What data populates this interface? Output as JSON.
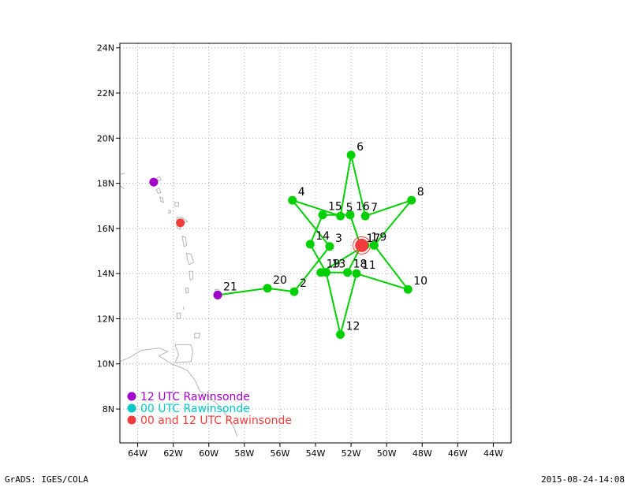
{
  "footer": {
    "left": "GrADS: IGES/COLA",
    "right": "2015-08-24-14:08"
  },
  "chart_data": {
    "type": "map",
    "lon_range": [
      -65,
      -43
    ],
    "lat_range": [
      6.5,
      24.2
    ],
    "x_ticks": [
      -64,
      -62,
      -60,
      -58,
      -56,
      -54,
      -52,
      -50,
      -48,
      -46,
      -44
    ],
    "x_tick_labels": [
      "64W",
      "62W",
      "60W",
      "58W",
      "56W",
      "54W",
      "52W",
      "50W",
      "48W",
      "46W",
      "44W"
    ],
    "y_ticks": [
      8,
      10,
      12,
      14,
      16,
      18,
      20,
      22,
      24
    ],
    "y_tick_labels": [
      "8N",
      "10N",
      "12N",
      "14N",
      "16N",
      "18N",
      "20N",
      "22N",
      "24N"
    ],
    "grid": true,
    "colors": {
      "track": "#00d000",
      "point": "#00d000",
      "rawinsonde_12": "#a000c8",
      "rawinsonde_00": "#00c8c8",
      "rawinsonde_both": "#f03c3c",
      "land": "#b4b4b4",
      "center": "#f03c3c"
    },
    "track_points": [
      {
        "label": "1",
        "lon": -51.2,
        "lat": 15.25
      },
      {
        "label": "2",
        "lon": -55.2,
        "lat": 13.2
      },
      {
        "label": "3",
        "lon": -53.2,
        "lat": 15.2
      },
      {
        "label": "4",
        "lon": -55.3,
        "lat": 17.25
      },
      {
        "label": "5",
        "lon": -52.6,
        "lat": 16.55
      },
      {
        "label": "6",
        "lon": -52.0,
        "lat": 19.25
      },
      {
        "label": "7",
        "lon": -51.2,
        "lat": 16.55
      },
      {
        "label": "8",
        "lon": -48.6,
        "lat": 17.25
      },
      {
        "label": "9",
        "lon": -50.7,
        "lat": 15.25
      },
      {
        "label": "10",
        "lon": -48.8,
        "lat": 13.3
      },
      {
        "label": "11",
        "lon": -51.7,
        "lat": 14.0
      },
      {
        "label": "12",
        "lon": -52.6,
        "lat": 11.3
      },
      {
        "label": "13",
        "lon": -53.4,
        "lat": 14.05
      },
      {
        "label": "14",
        "lon": -54.3,
        "lat": 15.3
      },
      {
        "label": "15",
        "lon": -53.6,
        "lat": 16.6
      },
      {
        "label": "16",
        "lon": -52.05,
        "lat": 16.6
      },
      {
        "label": "17",
        "lon": -51.45,
        "lat": 15.2
      },
      {
        "label": "18",
        "lon": -52.2,
        "lat": 14.05
      },
      {
        "label": "19",
        "lon": -53.7,
        "lat": 14.05
      },
      {
        "label": "20",
        "lon": -56.7,
        "lat": 13.35
      },
      {
        "label": "21",
        "lon": -59.5,
        "lat": 13.05
      }
    ],
    "track_order": [
      "21",
      "20",
      "2",
      "3",
      "4",
      "5",
      "6",
      "7",
      "8",
      "9",
      "10",
      "11",
      "12",
      "13",
      "14",
      "15",
      "16",
      "17",
      "18",
      "19",
      "1"
    ],
    "storm_center": {
      "lon": -51.4,
      "lat": 15.25,
      "marker": "19"
    },
    "rawinsonde_stations": [
      {
        "lon": -63.1,
        "lat": 18.05,
        "type": "12"
      },
      {
        "lon": -61.6,
        "lat": 16.25,
        "type": "both"
      },
      {
        "lon": -59.5,
        "lat": 13.05,
        "type": "12"
      }
    ],
    "legend": {
      "position": "bottom-left",
      "entries": [
        {
          "label": "12 UTC Rawinsonde",
          "color": "#a000c8"
        },
        {
          "label": "00 UTC Rawinsonde",
          "color": "#00c8c8"
        },
        {
          "label": "00 and 12 UTC Rawinsonde",
          "color": "#f03c3c"
        }
      ]
    }
  }
}
